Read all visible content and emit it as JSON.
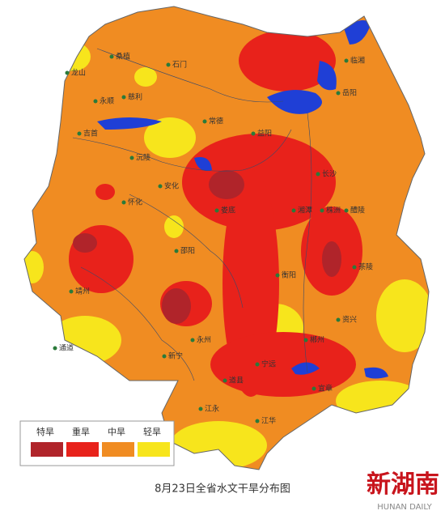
{
  "legend": [
    {
      "label": "特旱",
      "color": "#b0242a"
    },
    {
      "label": "重旱",
      "color": "#e8221b"
    },
    {
      "label": "中旱",
      "color": "#f08c22"
    },
    {
      "label": "轻旱",
      "color": "#f7e51c"
    }
  ],
  "places": [
    "桑植",
    "慈利",
    "石门",
    "临湘",
    "岳阳",
    "常德",
    "益阳",
    "长沙",
    "湘潭",
    "株洲",
    "醴陵",
    "衡阳",
    "邵阳",
    "娄底",
    "怀化",
    "吉首",
    "永州",
    "郴州",
    "宁远",
    "江永",
    "江华",
    "道县",
    "新宁",
    "靖州",
    "通道",
    "龙山",
    "永顺",
    "安化",
    "沅陵",
    "茶陵",
    "资兴",
    "宜章"
  ],
  "caption": "8月23日全省水文干旱分布图",
  "logo": {
    "title": "新湖南",
    "subtitle": "HUNAN DAILY"
  }
}
